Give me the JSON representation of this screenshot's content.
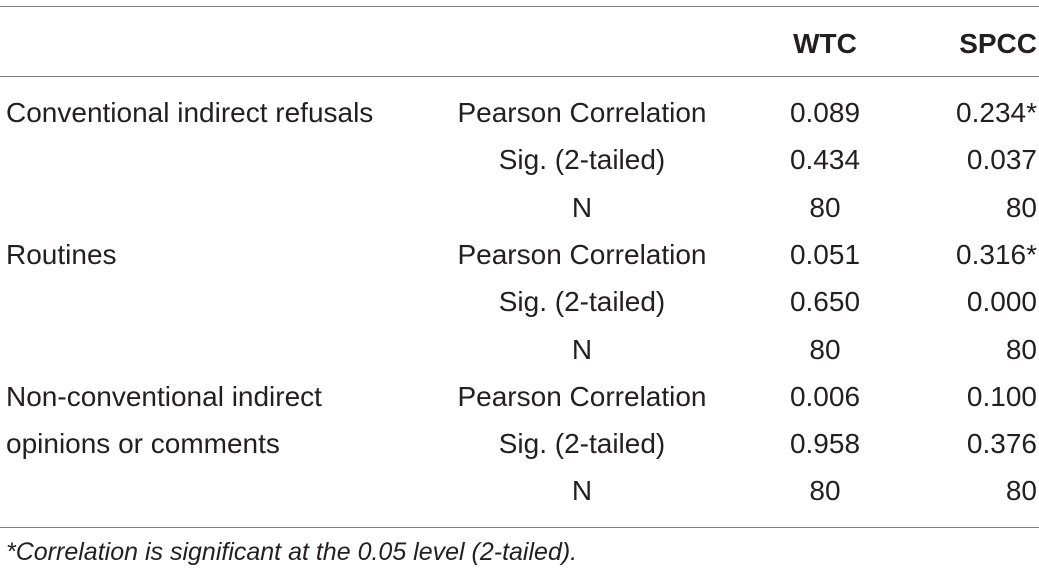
{
  "table": {
    "columns": [
      "",
      "",
      "WTC",
      "SPCC"
    ],
    "rows": [
      {
        "variable": "Conventional indirect refusals",
        "stat": "Pearson Correlation",
        "wtc": "0.089",
        "spcc": "0.234*"
      },
      {
        "variable": "",
        "stat": "Sig. (2-tailed)",
        "wtc": "0.434",
        "spcc": "0.037"
      },
      {
        "variable": "",
        "stat": "N",
        "wtc": "80",
        "spcc": "80"
      },
      {
        "variable": "Routines",
        "stat": "Pearson Correlation",
        "wtc": "0.051",
        "spcc": "0.316*"
      },
      {
        "variable": "",
        "stat": "Sig. (2-tailed)",
        "wtc": "0.650",
        "spcc": "0.000"
      },
      {
        "variable": "",
        "stat": "N",
        "wtc": "80",
        "spcc": "80"
      },
      {
        "variable": "Non-conventional indirect",
        "stat": "Pearson Correlation",
        "wtc": "0.006",
        "spcc": "0.100"
      },
      {
        "variable": "opinions or comments",
        "stat": "Sig. (2-tailed)",
        "wtc": "0.958",
        "spcc": "0.376"
      },
      {
        "variable": "",
        "stat": "N",
        "wtc": "80",
        "spcc": "80"
      }
    ],
    "footnote": "*Correlation is significant at the 0.05 level (2-tailed)."
  }
}
